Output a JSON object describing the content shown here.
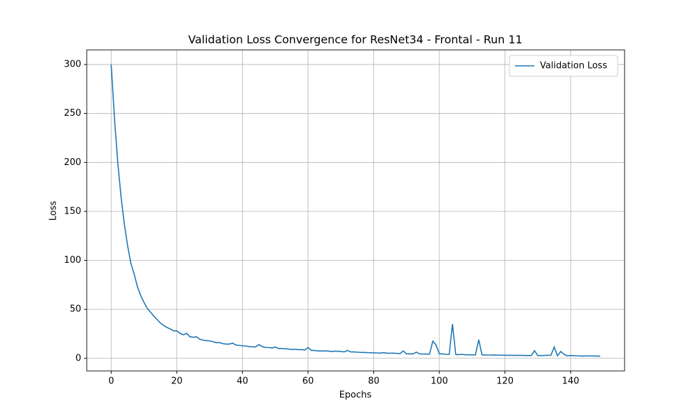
{
  "chart_data": {
    "type": "line",
    "title": "Validation Loss Convergence for ResNet34 - Frontal - Run 11",
    "x_label": "Epochs",
    "y_label": "Loss",
    "x": [
      0,
      1,
      2,
      3,
      4,
      5,
      6,
      7,
      8,
      9,
      10,
      11,
      12,
      13,
      14,
      15,
      16,
      17,
      18,
      19,
      20,
      21,
      22,
      23,
      24,
      25,
      26,
      27,
      28,
      29,
      30,
      31,
      32,
      33,
      34,
      35,
      36,
      37,
      38,
      39,
      40,
      41,
      42,
      43,
      44,
      45,
      46,
      47,
      48,
      49,
      50,
      51,
      52,
      53,
      54,
      55,
      56,
      57,
      58,
      59,
      60,
      61,
      62,
      63,
      64,
      65,
      66,
      67,
      68,
      69,
      70,
      71,
      72,
      73,
      74,
      75,
      76,
      77,
      78,
      79,
      80,
      81,
      82,
      83,
      84,
      85,
      86,
      87,
      88,
      89,
      90,
      91,
      92,
      93,
      94,
      95,
      96,
      97,
      98,
      99,
      100,
      101,
      102,
      103,
      104,
      105,
      106,
      107,
      108,
      109,
      110,
      111,
      112,
      113,
      114,
      115,
      116,
      117,
      118,
      119,
      120,
      121,
      122,
      123,
      124,
      125,
      126,
      127,
      128,
      129,
      130,
      131,
      132,
      133,
      134,
      135,
      136,
      137,
      138,
      139,
      140,
      141,
      142,
      143,
      144,
      145,
      146,
      147,
      148,
      149
    ],
    "series": [
      {
        "name": "Validation Loss",
        "color": "#1f77b4",
        "values": [
          300,
          245,
          200,
          165,
          137,
          115,
          97,
          86,
          73,
          64,
          57,
          51,
          47,
          43,
          39.5,
          36,
          33.5,
          31.5,
          30,
          28,
          28,
          25.5,
          24,
          25.5,
          22,
          21.5,
          22,
          19.5,
          18.5,
          18,
          17.8,
          17,
          16,
          16,
          15,
          14.5,
          14.5,
          15.5,
          13.5,
          13.2,
          12.8,
          12.5,
          12,
          11.8,
          11.5,
          14,
          12,
          11,
          11,
          10.5,
          11.5,
          10,
          10,
          9.8,
          9.5,
          9,
          9.3,
          8.8,
          8.8,
          8.5,
          11,
          8,
          8,
          7.5,
          7.5,
          7.5,
          7.5,
          7,
          7.2,
          7.2,
          7,
          6.5,
          8,
          6.5,
          6.5,
          6.3,
          6,
          6,
          5.8,
          5.7,
          5.6,
          5.5,
          5.3,
          5.8,
          5.2,
          5.2,
          5.3,
          5,
          4.8,
          7.5,
          4.5,
          4.6,
          4.5,
          6.3,
          4.5,
          4.3,
          4.3,
          4.2,
          17.5,
          13.5,
          4.5,
          4.5,
          4,
          4,
          35,
          3.8,
          3.8,
          4,
          3.6,
          3.6,
          3.5,
          3.5,
          19,
          3.5,
          3.4,
          3.3,
          3.3,
          3.4,
          3.2,
          3.2,
          3.1,
          3.1,
          3.1,
          3,
          3,
          3,
          2.9,
          2.8,
          2.8,
          7.8,
          2.7,
          2.7,
          3,
          3,
          3.2,
          11.5,
          2.5,
          7,
          4,
          2.5,
          2.9,
          2.6,
          2.5,
          2.4,
          2.4,
          2.5,
          2.4,
          2.4,
          2.3,
          2.2
        ]
      }
    ],
    "xlim": [
      -7.45,
      156.45
    ],
    "ylim": [
      -12.9,
      314.9
    ],
    "xticks": [
      0,
      20,
      40,
      60,
      80,
      100,
      120,
      140
    ],
    "yticks": [
      0,
      50,
      100,
      150,
      200,
      250,
      300
    ],
    "grid": true,
    "legend": "upper right"
  }
}
